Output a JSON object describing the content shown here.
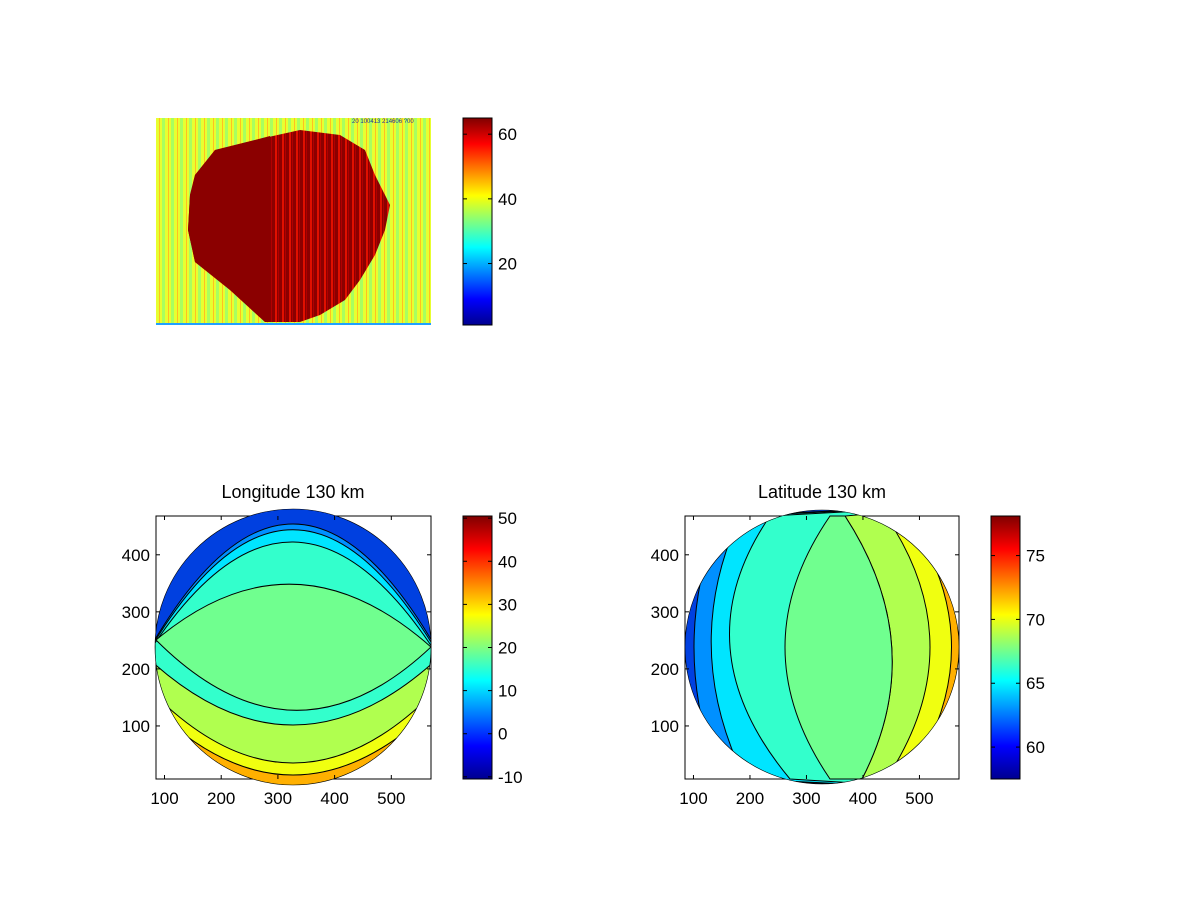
{
  "chart_data": [
    {
      "type": "heatmap",
      "title": "",
      "image_header_text": "20 100413 214606 ?00",
      "colorbar": {
        "range": [
          1,
          65
        ],
        "ticks": [
          20,
          40,
          60
        ],
        "colormap": "jet"
      },
      "description_values": {
        "background_level": 38,
        "disk_level": 62
      }
    },
    {
      "type": "heatmap",
      "title": "Longitude 130 km",
      "xlim": [
        85,
        570
      ],
      "ylim": [
        7,
        468
      ],
      "xticks": [
        100,
        200,
        300,
        400,
        500
      ],
      "yticks": [
        100,
        200,
        300,
        400
      ],
      "colorbar": {
        "range": [
          -10.5,
          50.5
        ],
        "ticks": [
          -10,
          0,
          10,
          20,
          30,
          40,
          50
        ],
        "colormap": "jet"
      },
      "contour_levels": [
        0,
        5,
        10,
        15,
        20,
        25,
        30,
        35
      ],
      "disk_center": [
        330,
        240
      ]
    },
    {
      "type": "heatmap",
      "title": "Latitude 130 km",
      "xlim": [
        85,
        570
      ],
      "ylim": [
        7,
        468
      ],
      "xticks": [
        100,
        200,
        300,
        400,
        500
      ],
      "yticks": [
        100,
        200,
        300,
        400
      ],
      "colorbar": {
        "range": [
          57.5,
          78.1
        ],
        "ticks": [
          60,
          65,
          70,
          75
        ],
        "colormap": "jet"
      },
      "contour_levels": [
        60,
        62,
        64,
        66,
        68,
        70,
        72,
        74
      ],
      "disk_center": [
        330,
        240
      ]
    }
  ],
  "colors": {
    "darkred": "#8b0000",
    "green": "#70ff8f",
    "aqua": "#33ffcc",
    "cyan": "#00e5ff",
    "yellowgreen": "#b0ff4f",
    "yellow": "#f0ff10",
    "orange": "#ffb000",
    "blue": "#0080ff"
  }
}
